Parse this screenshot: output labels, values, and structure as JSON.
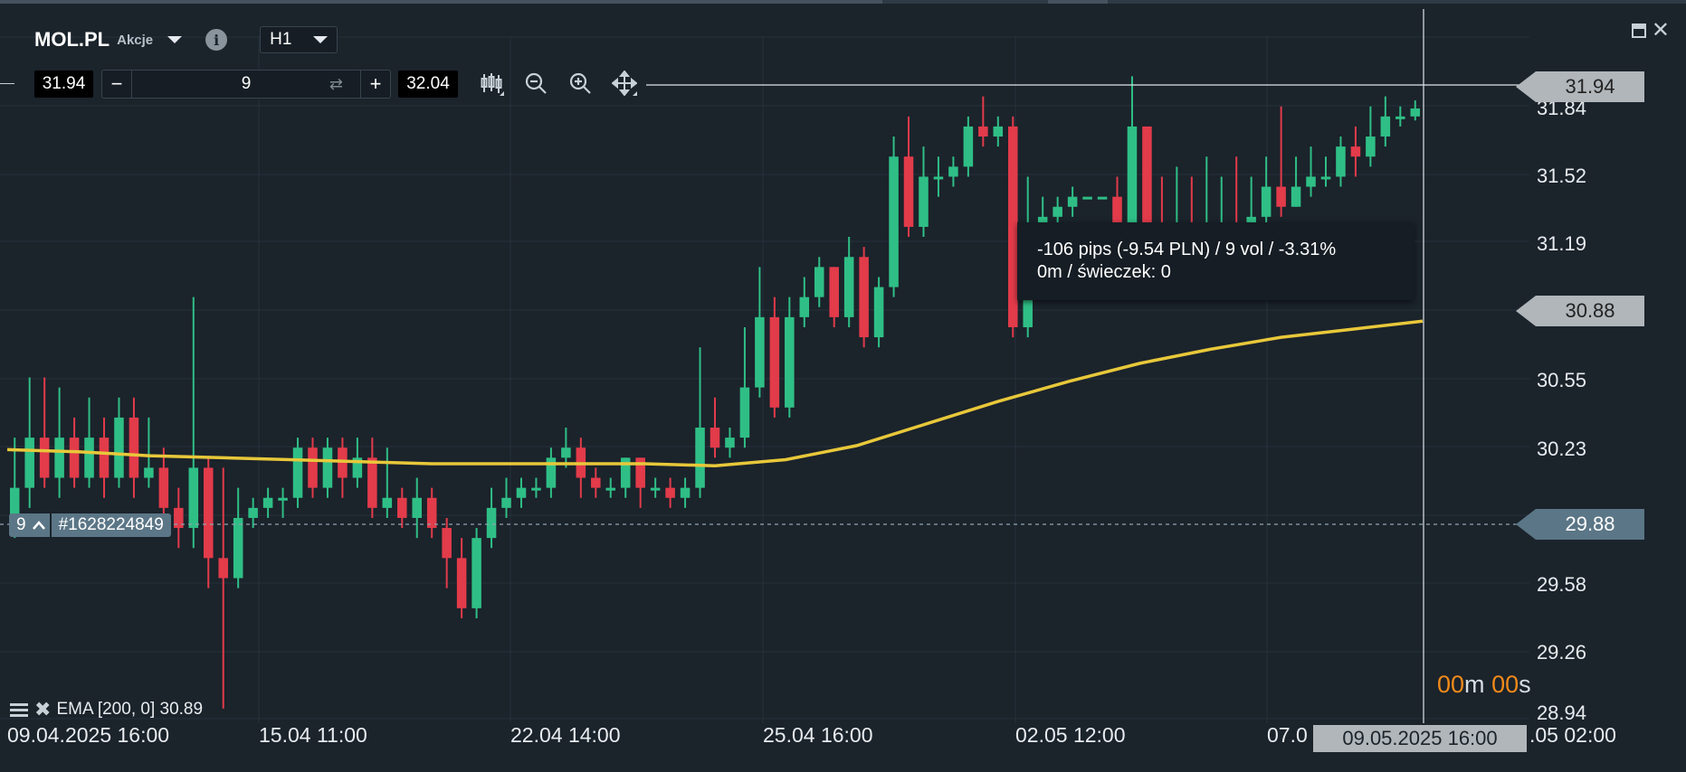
{
  "header": {
    "symbol": "MOL.PL",
    "instrument_type": "Akcje",
    "timeframe": "H1",
    "info_icon": "info-icon"
  },
  "order_panel": {
    "sell_price": "31.94",
    "volume": "9",
    "buy_price": "32.04",
    "minus_label": "−",
    "plus_label": "+",
    "tools": [
      "candles-type-icon",
      "zoom-out-icon",
      "zoom-in-icon",
      "move-icon"
    ]
  },
  "window_controls": [
    "minimize-icon",
    "close-icon"
  ],
  "price_axis": {
    "labels": [
      "31.84",
      "31.52",
      "31.19",
      "30.55",
      "30.23",
      "29.58",
      "29.26",
      "28.94"
    ],
    "tags": {
      "cursor_price": "31.94",
      "ema_price": "30.88",
      "position_price": "29.88"
    }
  },
  "time_axis": {
    "labels": [
      "09.04.2025 16:00",
      "15.04 11:00",
      "22.04 14:00",
      "25.04 16:00",
      "02.05 12:00",
      "07.0",
      ".05 02:00"
    ],
    "cursor_time": "09.05.2025 16:00"
  },
  "measure_tooltip": {
    "line1": "-106 pips (-9.54 PLN) / 9 vol / -3.31%",
    "line2": "0m / świeczek: 0"
  },
  "candle_timer": {
    "minutes": "00",
    "m_unit": "m",
    "seconds": "00",
    "s_unit": "s"
  },
  "position": {
    "volume": "9",
    "id": "#1628224849"
  },
  "indicator": {
    "label": "EMA [200, 0] 30.89"
  },
  "colors": {
    "background": "#1b232b",
    "bull": "#2fbf86",
    "bear": "#e23b4a",
    "ema": "#e8c83a",
    "tag_gray": "#b1b6ba",
    "tag_blue": "#5b7686",
    "timer_accent": "#f08a1a"
  },
  "chart_data": {
    "type": "candlestick",
    "ylim": [
      28.9,
      32.3
    ],
    "ema_values": [
      30.24,
      30.23,
      30.21,
      30.2,
      30.19,
      30.18,
      30.17,
      30.17,
      30.17,
      30.17,
      30.16,
      30.19,
      30.26,
      30.37,
      30.48,
      30.58,
      30.67,
      30.74,
      30.8,
      30.84,
      30.88
    ],
    "candles": [
      [
        29.85,
        30.05,
        30.3,
        29.8
      ],
      [
        30.05,
        30.3,
        30.6,
        29.95
      ],
      [
        30.3,
        30.1,
        30.6,
        30.05
      ],
      [
        30.1,
        30.3,
        30.55,
        30.0
      ],
      [
        30.3,
        30.1,
        30.4,
        30.05
      ],
      [
        30.1,
        30.3,
        30.5,
        30.05
      ],
      [
        30.3,
        30.1,
        30.4,
        30.0
      ],
      [
        30.1,
        30.4,
        30.5,
        30.05
      ],
      [
        30.4,
        30.1,
        30.5,
        30.0
      ],
      [
        30.1,
        30.15,
        30.4,
        30.05
      ],
      [
        30.15,
        29.95,
        30.25,
        29.85
      ],
      [
        29.95,
        29.85,
        30.05,
        29.75
      ],
      [
        29.85,
        30.15,
        31.0,
        29.75
      ],
      [
        30.15,
        29.7,
        30.2,
        29.55
      ],
      [
        29.7,
        29.6,
        30.15,
        28.95
      ],
      [
        29.6,
        29.9,
        30.05,
        29.55
      ],
      [
        29.9,
        29.95,
        30.0,
        29.85
      ],
      [
        29.95,
        30.0,
        30.05,
        29.9
      ],
      [
        30.0,
        30.0,
        30.05,
        29.9
      ],
      [
        30.0,
        30.25,
        30.3,
        29.95
      ],
      [
        30.25,
        30.05,
        30.3,
        30.0
      ],
      [
        30.05,
        30.25,
        30.3,
        30.0
      ],
      [
        30.25,
        30.1,
        30.3,
        30.0
      ],
      [
        30.1,
        30.2,
        30.3,
        30.05
      ],
      [
        30.2,
        29.95,
        30.3,
        29.9
      ],
      [
        29.95,
        30.0,
        30.25,
        29.9
      ],
      [
        30.0,
        29.9,
        30.05,
        29.85
      ],
      [
        29.9,
        30.0,
        30.1,
        29.8
      ],
      [
        30.0,
        29.85,
        30.05,
        29.8
      ],
      [
        29.85,
        29.7,
        29.9,
        29.55
      ],
      [
        29.7,
        29.45,
        29.8,
        29.4
      ],
      [
        29.45,
        29.8,
        29.85,
        29.4
      ],
      [
        29.8,
        29.95,
        30.05,
        29.75
      ],
      [
        29.95,
        30.0,
        30.1,
        29.9
      ],
      [
        30.0,
        30.05,
        30.1,
        29.95
      ],
      [
        30.05,
        30.05,
        30.1,
        30.0
      ],
      [
        30.05,
        30.2,
        30.25,
        30.0
      ],
      [
        30.2,
        30.25,
        30.35,
        30.15
      ],
      [
        30.25,
        30.1,
        30.3,
        30.0
      ],
      [
        30.1,
        30.05,
        30.15,
        30.0
      ],
      [
        30.05,
        30.05,
        30.1,
        30.0
      ],
      [
        30.05,
        30.2,
        30.2,
        30.0
      ],
      [
        30.2,
        30.05,
        30.2,
        29.95
      ],
      [
        30.05,
        30.05,
        30.1,
        30.0
      ],
      [
        30.05,
        30.0,
        30.1,
        29.95
      ],
      [
        30.0,
        30.05,
        30.1,
        29.95
      ],
      [
        30.05,
        30.35,
        30.75,
        30.0
      ],
      [
        30.35,
        30.25,
        30.5,
        30.2
      ],
      [
        30.25,
        30.3,
        30.35,
        30.2
      ],
      [
        30.3,
        30.55,
        30.85,
        30.25
      ],
      [
        30.55,
        30.9,
        31.15,
        30.5
      ],
      [
        30.9,
        30.45,
        31.0,
        30.4
      ],
      [
        30.45,
        30.9,
        31.0,
        30.4
      ],
      [
        30.9,
        31.0,
        31.1,
        30.85
      ],
      [
        31.0,
        31.15,
        31.2,
        30.95
      ],
      [
        31.15,
        30.9,
        31.15,
        30.85
      ],
      [
        30.9,
        31.2,
        31.3,
        30.85
      ],
      [
        31.2,
        30.8,
        31.25,
        30.75
      ],
      [
        30.8,
        31.05,
        31.1,
        30.75
      ],
      [
        31.05,
        31.7,
        31.8,
        31.0
      ],
      [
        31.7,
        31.35,
        31.9,
        31.3
      ],
      [
        31.35,
        31.6,
        31.75,
        31.3
      ],
      [
        31.6,
        31.6,
        31.7,
        31.5
      ],
      [
        31.6,
        31.65,
        31.7,
        31.55
      ],
      [
        31.65,
        31.85,
        31.9,
        31.6
      ],
      [
        31.85,
        31.8,
        32.0,
        31.75
      ],
      [
        31.8,
        31.85,
        31.9,
        31.75
      ],
      [
        31.85,
        30.85,
        31.9,
        30.8
      ],
      [
        30.85,
        31.3,
        31.6,
        30.8
      ],
      [
        31.3,
        31.4,
        31.5,
        31.25
      ],
      [
        31.4,
        31.45,
        31.5,
        31.35
      ],
      [
        31.45,
        31.5,
        31.55,
        31.4
      ],
      [
        31.5,
        31.5,
        31.5,
        31.5
      ],
      [
        31.5,
        31.5,
        31.5,
        31.5
      ],
      [
        31.5,
        31.2,
        31.6,
        31.15
      ],
      [
        31.2,
        31.85,
        32.1,
        31.15
      ],
      [
        31.85,
        31.15,
        31.7,
        31.1
      ],
      [
        31.15,
        31.05,
        31.6,
        31.0
      ],
      [
        31.05,
        31.1,
        31.65,
        31.0
      ],
      [
        31.1,
        31.05,
        31.6,
        31.0
      ],
      [
        31.05,
        31.1,
        31.7,
        31.0
      ],
      [
        31.1,
        31.2,
        31.6,
        31.05
      ],
      [
        31.2,
        31.15,
        31.7,
        31.1
      ],
      [
        31.15,
        31.4,
        31.6,
        31.1
      ],
      [
        31.4,
        31.55,
        31.7,
        31.35
      ],
      [
        31.55,
        31.45,
        31.95,
        31.4
      ],
      [
        31.45,
        31.55,
        31.7,
        31.45
      ],
      [
        31.55,
        31.6,
        31.75,
        31.5
      ],
      [
        31.6,
        31.6,
        31.7,
        31.55
      ],
      [
        31.6,
        31.75,
        31.8,
        31.55
      ],
      [
        31.75,
        31.7,
        31.85,
        31.6
      ],
      [
        31.7,
        31.8,
        31.95,
        31.65
      ],
      [
        31.8,
        31.9,
        32.0,
        31.75
      ],
      [
        31.9,
        31.9,
        31.95,
        31.85
      ],
      [
        31.9,
        31.94,
        31.98,
        31.88
      ]
    ]
  }
}
